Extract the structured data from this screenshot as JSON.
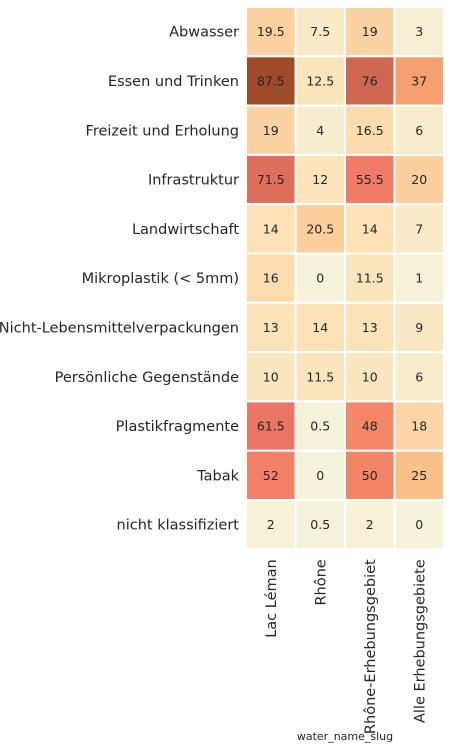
{
  "chart_data": {
    "type": "heatmap",
    "rows": [
      "Abwasser",
      "Essen und Trinken",
      "Freizeit und Erholung",
      "Infrastruktur",
      "Landwirtschaft",
      "Mikroplastik (< 5mm)",
      "Nicht-Lebensmittelverpackungen",
      "Persönliche Gegenstände",
      "Plastikfragmente",
      "Tabak",
      "nicht klassifiziert"
    ],
    "columns": [
      "Lac Léman",
      "Rhône",
      "Rhône-Erhebungsgebiet",
      "Alle Erhebungsgebiete"
    ],
    "values": [
      [
        19.5,
        7.5,
        19,
        3
      ],
      [
        87.5,
        12.5,
        76,
        37
      ],
      [
        19,
        4,
        16.5,
        6
      ],
      [
        71.5,
        12,
        55.5,
        20
      ],
      [
        14,
        20.5,
        14,
        7
      ],
      [
        16,
        0,
        11.5,
        1
      ],
      [
        13,
        14,
        13,
        9
      ],
      [
        10,
        11.5,
        10,
        6
      ],
      [
        61.5,
        0.5,
        48,
        18
      ],
      [
        52,
        0,
        50,
        25
      ],
      [
        2,
        0.5,
        2,
        0
      ]
    ],
    "labels": [
      [
        "19.5",
        "7.5",
        "19",
        "3"
      ],
      [
        "87.5",
        "12.5",
        "76",
        "37"
      ],
      [
        "19",
        "4",
        "16.5",
        "6"
      ],
      [
        "71.5",
        "12",
        "55.5",
        "20"
      ],
      [
        "14",
        "20.5",
        "14",
        "7"
      ],
      [
        "16",
        "0",
        "11.5",
        "1"
      ],
      [
        "13",
        "14",
        "13",
        "9"
      ],
      [
        "10",
        "11.5",
        "10",
        "6"
      ],
      [
        "61.5",
        "0.5",
        "48",
        "18"
      ],
      [
        "52",
        "0",
        "50",
        "25"
      ],
      [
        "2",
        "0.5",
        "2",
        "0"
      ]
    ],
    "xlabel": "water_name_slug",
    "ylabel": "",
    "colorbar": false,
    "colormap": [
      "#f5f3dc",
      "#fde1b5",
      "#f8b378",
      "#f58e68",
      "#ef7766",
      "#dd6e5c",
      "#9e4b2a"
    ],
    "cell_border_color": "#ffffff"
  }
}
